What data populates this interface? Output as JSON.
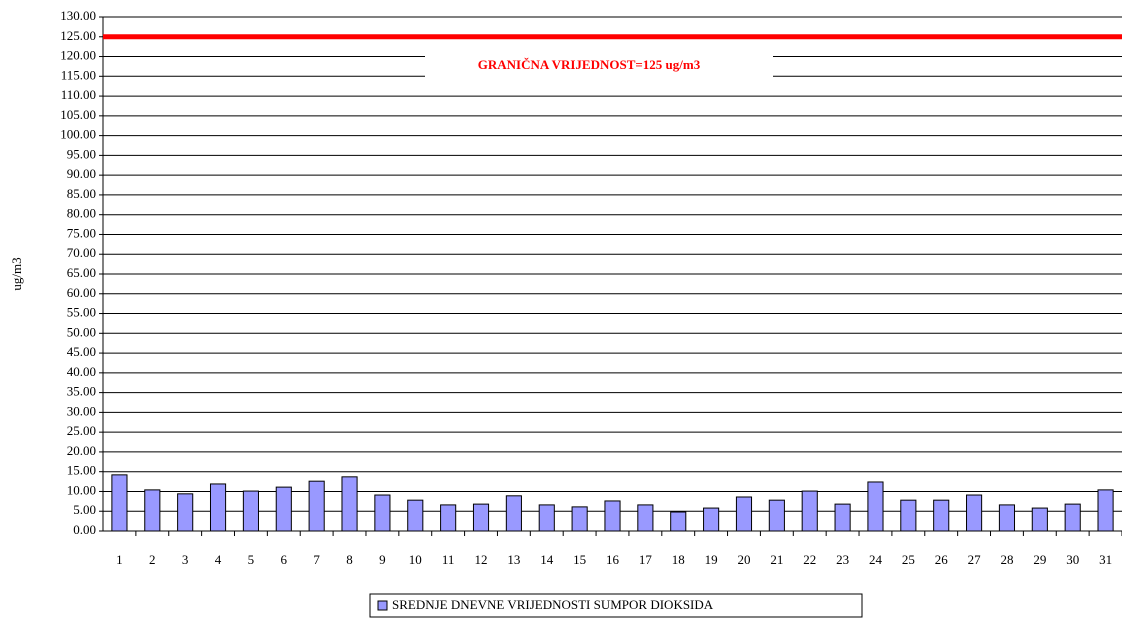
{
  "chart_data": {
    "type": "bar",
    "y_label": "ug/m3",
    "categories": [
      "1",
      "2",
      "3",
      "4",
      "5",
      "6",
      "7",
      "8",
      "9",
      "10",
      "11",
      "12",
      "13",
      "14",
      "15",
      "16",
      "17",
      "18",
      "19",
      "20",
      "21",
      "22",
      "23",
      "24",
      "25",
      "26",
      "27",
      "28",
      "29",
      "30",
      "31"
    ],
    "series": [
      {
        "name": "SREDNJE DNEVNE VRIJEDNOSTI SUMPOR DIOKSIDA",
        "color": "#9999ff",
        "values": [
          14.2,
          10.4,
          9.4,
          11.9,
          10.1,
          11.1,
          12.6,
          13.7,
          9.1,
          7.8,
          6.6,
          6.8,
          8.9,
          6.6,
          6.1,
          7.6,
          6.6,
          4.8,
          5.8,
          8.6,
          7.8,
          10.1,
          6.8,
          12.4,
          7.8,
          7.8,
          9.1,
          6.6,
          5.8,
          6.8,
          10.4
        ]
      }
    ],
    "threshold": {
      "value": 125,
      "label": "GRANIČNA VRIJEDNOST=125 ug/m3",
      "color": "#ff0000"
    },
    "ylim": [
      0,
      130
    ],
    "yticks": [
      {
        "value": 0,
        "label": "0.00"
      },
      {
        "value": 5,
        "label": "5.00"
      },
      {
        "value": 10,
        "label": "10.00"
      },
      {
        "value": 15,
        "label": "15.00"
      },
      {
        "value": 20,
        "label": "20.00"
      },
      {
        "value": 25,
        "label": "25.00"
      },
      {
        "value": 30,
        "label": "30.00"
      },
      {
        "value": 35,
        "label": "35.00"
      },
      {
        "value": 40,
        "label": "40.00"
      },
      {
        "value": 45,
        "label": "45.00"
      },
      {
        "value": 50,
        "label": "50.00"
      },
      {
        "value": 55,
        "label": "55.00"
      },
      {
        "value": 60,
        "label": "60.00"
      },
      {
        "value": 65,
        "label": "65.00"
      },
      {
        "value": 70,
        "label": "70.00"
      },
      {
        "value": 75,
        "label": "75.00"
      },
      {
        "value": 80,
        "label": "80.00"
      },
      {
        "value": 85,
        "label": "85.00"
      },
      {
        "value": 90,
        "label": "90.00"
      },
      {
        "value": 95,
        "label": "95.00"
      },
      {
        "value": 100,
        "label": "100.00"
      },
      {
        "value": 105,
        "label": "105.00"
      },
      {
        "value": 110,
        "label": "110.00"
      },
      {
        "value": 115,
        "label": "115.00"
      },
      {
        "value": 120,
        "label": "120.00"
      },
      {
        "value": 125,
        "label": "125.00"
      },
      {
        "value": 130,
        "label": "130.00"
      }
    ],
    "grid": true,
    "legend": "bottom"
  }
}
